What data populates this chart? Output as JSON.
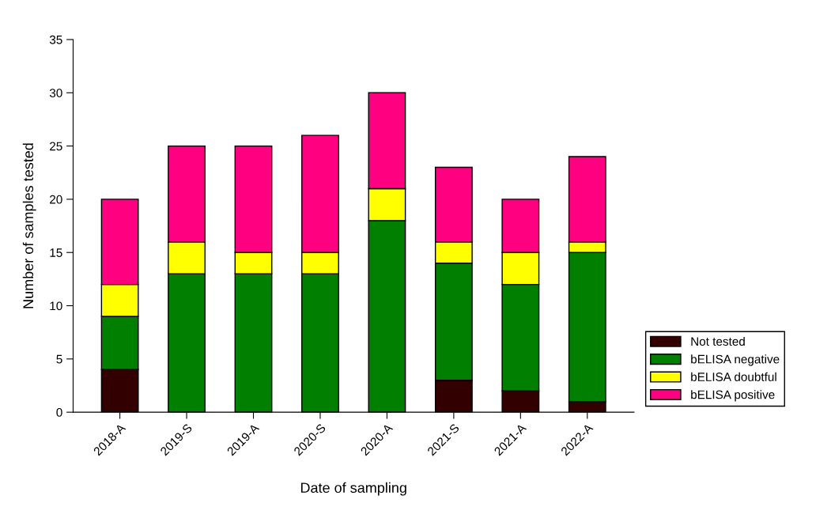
{
  "chart_data": {
    "type": "bar",
    "stacked": true,
    "xlabel": "Date of sampling",
    "ylabel": "Number of samples tested",
    "categories": [
      "2018-A",
      "2019-S",
      "2019-A",
      "2020-S",
      "2020-A",
      "2021-S",
      "2021-A",
      "2022-A"
    ],
    "series": [
      {
        "name": "Not tested",
        "color": "#330000",
        "values": [
          4,
          0,
          0,
          0,
          0,
          3,
          2,
          1
        ]
      },
      {
        "name": "bELISA negative",
        "color": "#007f00",
        "values": [
          5,
          13,
          13,
          13,
          18,
          11,
          10,
          14
        ]
      },
      {
        "name": "bELISA doubtful",
        "color": "#ffff00",
        "values": [
          3,
          3,
          2,
          2,
          3,
          2,
          3,
          1
        ]
      },
      {
        "name": "bELISA positive",
        "color": "#ff0080",
        "values": [
          8,
          9,
          10,
          11,
          9,
          7,
          5,
          8
        ]
      }
    ],
    "ylim": [
      0,
      35
    ],
    "yticks": [
      0,
      5,
      10,
      15,
      20,
      25,
      30,
      35
    ],
    "grid": false,
    "legend": "right"
  }
}
